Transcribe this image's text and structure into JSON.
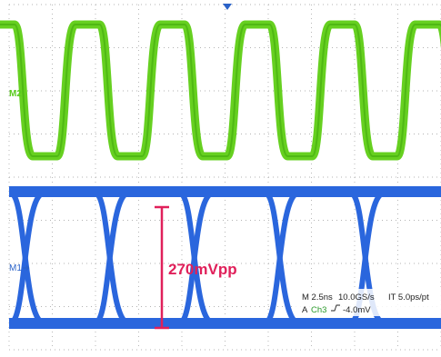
{
  "labels": {
    "m2": "M2",
    "m1": "M1",
    "measurement": "270mVpp"
  },
  "status": {
    "timebase": "M 2.5ns",
    "sample_rate": "10.0GS/s",
    "resolution": "IT 5.0ps/pt",
    "trigger_mode": "A",
    "trigger_source": "Ch3",
    "trigger_level": "-4.0mV"
  }
}
